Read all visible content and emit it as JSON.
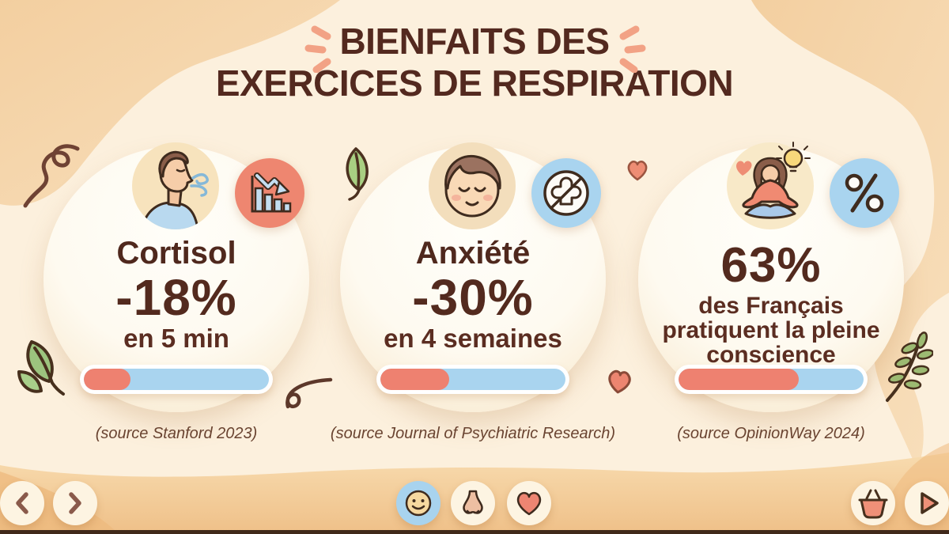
{
  "title": {
    "line1": "BIENFAITS DES",
    "line2": "EXERCICES DE RESPIRATION"
  },
  "cards": [
    {
      "avatar": "man-exhaling",
      "badge_icon": "declining-bar-chart",
      "heading": "Cortisol",
      "value": "-18%",
      "sub": "en 5 min",
      "progress_percent": 25,
      "source": "(source Stanford 2023)"
    },
    {
      "avatar": "calm-face-eyes-closed",
      "badge_icon": "anxiety-crossed-out",
      "heading": "Anxiété",
      "value": "-30%",
      "sub": "en 4 semaines",
      "progress_percent": 37,
      "source": "(source Journal of Psychiatric Research)"
    },
    {
      "avatar": "meditating-woman-lightbulb",
      "badge_icon": "percent-sign",
      "heading": "",
      "value": "63%",
      "sub": "des Français\npratiquent la pleine\nconscience",
      "progress_percent": 65,
      "source": "(source OpinionWay 2024)"
    }
  ],
  "footer": {
    "buttons": [
      {
        "icon": "chevron-left"
      },
      {
        "icon": "chevron-right"
      },
      {
        "icon": "smiley-face"
      },
      {
        "icon": "nose"
      },
      {
        "icon": "heart"
      },
      {
        "icon": "shopping-basket"
      },
      {
        "icon": "play"
      }
    ]
  },
  "decorations": [
    "spark-dashes",
    "curl-doodle",
    "green-leaf",
    "small-heart",
    "squiggle",
    "laurel-leaves",
    "olive-sprig"
  ],
  "colors": {
    "accent_salmon": "#ee8672",
    "accent_blue": "#a9d4ef",
    "text_brown": "#53291f",
    "bg_cream": "#fcf0dd",
    "bg_peach": "#f6d6a9",
    "progress_fill": "#ee8170",
    "progress_track": "#a9d4ef"
  }
}
